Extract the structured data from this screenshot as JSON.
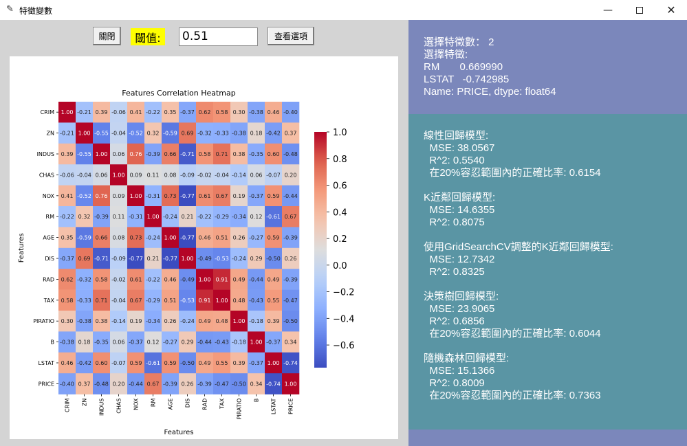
{
  "window": {
    "title": "特徵變數",
    "icon": "feather-icon",
    "controls": [
      "minimize-icon",
      "maximize-icon",
      "close-icon"
    ]
  },
  "toolbar": {
    "close_label": "關閉",
    "threshold_label": "閾值:",
    "threshold_value": "0.51",
    "view_options_label": "查看選項"
  },
  "selection": {
    "count_line": "選擇特徵數： 2",
    "features_line": "選擇特徵:",
    "feature_rows": [
      "RM       0.669990",
      "LSTAT   -0.742985",
      "Name: PRICE, dtype: float64"
    ]
  },
  "models": [
    {
      "name": "線性回歸模型:",
      "lines": [
        "  MSE: 38.0567",
        "  R^2: 0.5540",
        "  在20%容忍範圍內的正確比率: 0.6154"
      ]
    },
    {
      "name": "K近鄰回歸模型:",
      "lines": [
        "  MSE: 14.6355",
        "  R^2: 0.8075"
      ]
    },
    {
      "name": "使用GridSearchCV調整的K近鄰回歸模型:",
      "lines": [
        "  MSE: 12.7342",
        "  R^2: 0.8325"
      ]
    },
    {
      "name": "決策樹回歸模型:",
      "lines": [
        "  MSE: 23.9065",
        "  R^2: 0.6856",
        "  在20%容忍範圍內的正確比率: 0.6044"
      ]
    },
    {
      "name": "隨機森林回歸模型:",
      "lines": [
        "  MSE: 15.1366",
        "  R^2: 0.8009",
        "  在20%容忍範圍內的正確比率: 0.7363"
      ]
    }
  ],
  "colors": {
    "panel_top": "#7b87bb",
    "panel_main": "#5a95a4",
    "threshold_highlight": "#ffff00"
  },
  "chart_data": {
    "type": "heatmap",
    "title": "Features Correlation Heatmap",
    "xlabel": "Features",
    "ylabel": "Features",
    "colormap": "coolwarm",
    "vmin": -0.77,
    "vmax": 1.0,
    "colorbar_ticks": [
      1.0,
      0.8,
      0.6,
      0.4,
      0.2,
      0.0,
      -0.2,
      -0.4,
      -0.6
    ],
    "colorbar_tick_labels": [
      "1.0",
      "0.8",
      "0.6",
      "0.4",
      "0.2",
      "0.0",
      "−0.2",
      "−0.4",
      "−0.6"
    ],
    "labels": [
      "CRIM",
      "ZN",
      "INDUS",
      "CHAS",
      "NOX",
      "RM",
      "AGE",
      "DIS",
      "RAD",
      "TAX",
      "PIRATIO",
      "B",
      "LSTAT",
      "PRICE"
    ],
    "matrix": [
      [
        1.0,
        -0.21,
        0.39,
        -0.06,
        0.41,
        -0.22,
        0.35,
        -0.37,
        0.62,
        0.58,
        0.3,
        -0.38,
        0.46,
        -0.4
      ],
      [
        -0.21,
        1.0,
        -0.55,
        -0.04,
        -0.52,
        0.32,
        -0.59,
        0.69,
        -0.32,
        -0.33,
        -0.38,
        0.18,
        -0.42,
        0.37
      ],
      [
        0.39,
        -0.55,
        1.0,
        0.06,
        0.76,
        -0.39,
        0.66,
        -0.71,
        0.58,
        0.71,
        0.38,
        -0.35,
        0.6,
        -0.48
      ],
      [
        -0.06,
        -0.04,
        0.06,
        1.0,
        0.09,
        0.11,
        0.08,
        -0.09,
        -0.02,
        -0.04,
        -0.14,
        0.06,
        -0.07,
        0.2
      ],
      [
        0.41,
        -0.52,
        0.76,
        0.09,
        1.0,
        -0.31,
        0.73,
        -0.77,
        0.61,
        0.67,
        0.19,
        -0.37,
        0.59,
        -0.44
      ],
      [
        -0.22,
        0.32,
        -0.39,
        0.11,
        -0.31,
        1.0,
        -0.24,
        0.21,
        -0.22,
        -0.29,
        -0.34,
        0.12,
        -0.61,
        0.67
      ],
      [
        0.35,
        -0.59,
        0.66,
        0.08,
        0.73,
        -0.24,
        1.0,
        -0.77,
        0.46,
        0.51,
        0.26,
        -0.27,
        0.59,
        -0.39
      ],
      [
        -0.37,
        0.69,
        -0.71,
        -0.09,
        -0.77,
        0.21,
        -0.77,
        1.0,
        -0.49,
        -0.53,
        -0.24,
        0.29,
        -0.5,
        0.26
      ],
      [
        0.62,
        -0.32,
        0.58,
        -0.02,
        0.61,
        -0.22,
        0.46,
        -0.49,
        1.0,
        0.91,
        0.49,
        -0.44,
        0.49,
        -0.39
      ],
      [
        0.58,
        -0.33,
        0.71,
        -0.04,
        0.67,
        -0.29,
        0.51,
        -0.53,
        0.91,
        1.0,
        0.48,
        -0.43,
        0.55,
        -0.47
      ],
      [
        0.3,
        -0.38,
        0.38,
        -0.14,
        0.19,
        -0.34,
        0.26,
        -0.24,
        0.49,
        0.48,
        1.0,
        -0.18,
        0.39,
        -0.5
      ],
      [
        -0.38,
        0.18,
        -0.35,
        0.06,
        -0.37,
        0.12,
        -0.27,
        0.29,
        -0.44,
        -0.43,
        -0.18,
        1.0,
        -0.37,
        0.34
      ],
      [
        0.46,
        -0.42,
        0.6,
        -0.07,
        0.59,
        -0.61,
        0.59,
        -0.5,
        0.49,
        0.55,
        0.39,
        -0.37,
        1.0,
        -0.74
      ],
      [
        -0.4,
        0.37,
        -0.48,
        0.2,
        -0.44,
        0.67,
        -0.39,
        0.26,
        -0.39,
        -0.47,
        -0.5,
        0.34,
        -0.74,
        1.0
      ]
    ]
  }
}
